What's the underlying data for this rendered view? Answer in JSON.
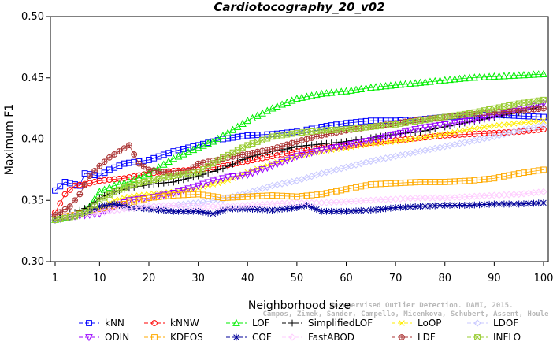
{
  "chart_data": {
    "type": "line",
    "title": "Cardiotocography_20_v02",
    "xlabel": "Neighborhood size",
    "ylabel": "Maximum F1",
    "xlim": [
      1,
      100
    ],
    "ylim": [
      0.3,
      0.5
    ],
    "x_ticks": [
      1,
      10,
      20,
      30,
      40,
      50,
      60,
      70,
      80,
      90,
      100
    ],
    "y_ticks": [
      0.3,
      0.35,
      0.4,
      0.45,
      0.5
    ],
    "y_tick_labels": [
      "0.30",
      "0.35",
      "0.40",
      "0.45",
      "0.50"
    ],
    "grid": false,
    "legend_position": "bottom",
    "watermark": [
      "Unsupervised Outlier Detection. DAMI, 2015.",
      "Campos, Zimek, Sander, Campello, Micenkova, Schubert, Assent, Houle"
    ],
    "series": [
      {
        "name": "kNN",
        "color": "#0000ff",
        "marker": "square",
        "points": [
          [
            1,
            0.358
          ],
          [
            3,
            0.365
          ],
          [
            6,
            0.362
          ],
          [
            7,
            0.372
          ],
          [
            10,
            0.37
          ],
          [
            12,
            0.375
          ],
          [
            15,
            0.38
          ],
          [
            20,
            0.383
          ],
          [
            25,
            0.39
          ],
          [
            30,
            0.395
          ],
          [
            35,
            0.4
          ],
          [
            40,
            0.403
          ],
          [
            45,
            0.404
          ],
          [
            50,
            0.406
          ],
          [
            55,
            0.41
          ],
          [
            60,
            0.413
          ],
          [
            65,
            0.415
          ],
          [
            70,
            0.415
          ],
          [
            75,
            0.416
          ],
          [
            80,
            0.418
          ],
          [
            85,
            0.419
          ],
          [
            90,
            0.42
          ],
          [
            95,
            0.419
          ],
          [
            100,
            0.418
          ]
        ]
      },
      {
        "name": "kNNW",
        "color": "#ff0000",
        "marker": "circle",
        "points": [
          [
            1,
            0.34
          ],
          [
            3,
            0.355
          ],
          [
            5,
            0.362
          ],
          [
            8,
            0.364
          ],
          [
            10,
            0.366
          ],
          [
            15,
            0.368
          ],
          [
            20,
            0.372
          ],
          [
            25,
            0.374
          ],
          [
            30,
            0.375
          ],
          [
            35,
            0.378
          ],
          [
            40,
            0.382
          ],
          [
            45,
            0.386
          ],
          [
            50,
            0.39
          ],
          [
            55,
            0.393
          ],
          [
            60,
            0.394
          ],
          [
            65,
            0.397
          ],
          [
            70,
            0.399
          ],
          [
            75,
            0.401
          ],
          [
            80,
            0.403
          ],
          [
            85,
            0.404
          ],
          [
            90,
            0.405
          ],
          [
            95,
            0.406
          ],
          [
            100,
            0.408
          ]
        ]
      },
      {
        "name": "LOF",
        "color": "#00ee00",
        "marker": "triangle-up",
        "points": [
          [
            1,
            0.334
          ],
          [
            5,
            0.338
          ],
          [
            8,
            0.345
          ],
          [
            10,
            0.357
          ],
          [
            13,
            0.362
          ],
          [
            16,
            0.365
          ],
          [
            20,
            0.372
          ],
          [
            25,
            0.384
          ],
          [
            30,
            0.393
          ],
          [
            33,
            0.398
          ],
          [
            36,
            0.405
          ],
          [
            40,
            0.415
          ],
          [
            45,
            0.425
          ],
          [
            50,
            0.433
          ],
          [
            55,
            0.437
          ],
          [
            60,
            0.439
          ],
          [
            65,
            0.442
          ],
          [
            70,
            0.444
          ],
          [
            75,
            0.446
          ],
          [
            80,
            0.448
          ],
          [
            85,
            0.45
          ],
          [
            90,
            0.451
          ],
          [
            95,
            0.452
          ],
          [
            100,
            0.453
          ]
        ]
      },
      {
        "name": "SimplifiedLOF",
        "color": "#000000",
        "marker": "plus",
        "points": [
          [
            1,
            0.337
          ],
          [
            5,
            0.34
          ],
          [
            8,
            0.345
          ],
          [
            10,
            0.352
          ],
          [
            13,
            0.357
          ],
          [
            16,
            0.36
          ],
          [
            20,
            0.363
          ],
          [
            25,
            0.365
          ],
          [
            30,
            0.37
          ],
          [
            35,
            0.376
          ],
          [
            40,
            0.385
          ],
          [
            45,
            0.39
          ],
          [
            48,
            0.392
          ],
          [
            50,
            0.394
          ],
          [
            55,
            0.396
          ],
          [
            60,
            0.398
          ],
          [
            65,
            0.401
          ],
          [
            70,
            0.404
          ],
          [
            75,
            0.406
          ],
          [
            80,
            0.41
          ],
          [
            85,
            0.414
          ],
          [
            90,
            0.418
          ],
          [
            95,
            0.422
          ],
          [
            100,
            0.427
          ]
        ]
      },
      {
        "name": "LoOP",
        "color": "#ffee00",
        "marker": "x",
        "points": [
          [
            1,
            0.336
          ],
          [
            5,
            0.337
          ],
          [
            10,
            0.343
          ],
          [
            13,
            0.35
          ],
          [
            16,
            0.353
          ],
          [
            20,
            0.355
          ],
          [
            25,
            0.357
          ],
          [
            30,
            0.36
          ],
          [
            35,
            0.365
          ],
          [
            40,
            0.373
          ],
          [
            45,
            0.38
          ],
          [
            50,
            0.386
          ],
          [
            55,
            0.39
          ],
          [
            60,
            0.393
          ],
          [
            65,
            0.396
          ],
          [
            70,
            0.398
          ],
          [
            75,
            0.401
          ],
          [
            80,
            0.404
          ],
          [
            85,
            0.408
          ],
          [
            90,
            0.411
          ],
          [
            95,
            0.413
          ],
          [
            100,
            0.415
          ]
        ]
      },
      {
        "name": "LDOF",
        "color": "#c8c8ff",
        "marker": "diamond",
        "points": [
          [
            1,
            0.336
          ],
          [
            5,
            0.337
          ],
          [
            10,
            0.34
          ],
          [
            15,
            0.343
          ],
          [
            20,
            0.345
          ],
          [
            25,
            0.346
          ],
          [
            30,
            0.348
          ],
          [
            35,
            0.351
          ],
          [
            40,
            0.356
          ],
          [
            45,
            0.362
          ],
          [
            50,
            0.366
          ],
          [
            55,
            0.372
          ],
          [
            60,
            0.377
          ],
          [
            65,
            0.382
          ],
          [
            70,
            0.386
          ],
          [
            75,
            0.39
          ],
          [
            80,
            0.394
          ],
          [
            85,
            0.398
          ],
          [
            90,
            0.402
          ],
          [
            95,
            0.407
          ],
          [
            100,
            0.411
          ]
        ]
      },
      {
        "name": "ODIN",
        "color": "#9900ff",
        "marker": "triangle-down",
        "points": [
          [
            1,
            0.336
          ],
          [
            5,
            0.337
          ],
          [
            10,
            0.339
          ],
          [
            13,
            0.345
          ],
          [
            16,
            0.35
          ],
          [
            20,
            0.352
          ],
          [
            25,
            0.356
          ],
          [
            30,
            0.362
          ],
          [
            33,
            0.366
          ],
          [
            36,
            0.369
          ],
          [
            40,
            0.371
          ],
          [
            45,
            0.378
          ],
          [
            50,
            0.386
          ],
          [
            55,
            0.391
          ],
          [
            60,
            0.395
          ],
          [
            65,
            0.399
          ],
          [
            70,
            0.404
          ],
          [
            75,
            0.409
          ],
          [
            80,
            0.412
          ],
          [
            85,
            0.415
          ],
          [
            90,
            0.419
          ],
          [
            95,
            0.424
          ],
          [
            100,
            0.429
          ]
        ]
      },
      {
        "name": "KDEOS",
        "color": "#ffaa00",
        "marker": "square",
        "points": [
          [
            1,
            0.336
          ],
          [
            5,
            0.338
          ],
          [
            10,
            0.343
          ],
          [
            15,
            0.347
          ],
          [
            20,
            0.352
          ],
          [
            25,
            0.354
          ],
          [
            30,
            0.355
          ],
          [
            35,
            0.352
          ],
          [
            40,
            0.353
          ],
          [
            45,
            0.354
          ],
          [
            50,
            0.353
          ],
          [
            55,
            0.355
          ],
          [
            60,
            0.359
          ],
          [
            65,
            0.363
          ],
          [
            70,
            0.364
          ],
          [
            75,
            0.365
          ],
          [
            80,
            0.365
          ],
          [
            85,
            0.366
          ],
          [
            90,
            0.368
          ],
          [
            95,
            0.372
          ],
          [
            100,
            0.375
          ]
        ]
      },
      {
        "name": "COF",
        "color": "#000099",
        "marker": "asterisk",
        "points": [
          [
            1,
            0.334
          ],
          [
            5,
            0.337
          ],
          [
            8,
            0.341
          ],
          [
            10,
            0.345
          ],
          [
            13,
            0.347
          ],
          [
            16,
            0.344
          ],
          [
            20,
            0.343
          ],
          [
            25,
            0.341
          ],
          [
            30,
            0.341
          ],
          [
            33,
            0.339
          ],
          [
            36,
            0.343
          ],
          [
            40,
            0.343
          ],
          [
            45,
            0.342
          ],
          [
            50,
            0.344
          ],
          [
            52,
            0.346
          ],
          [
            55,
            0.341
          ],
          [
            60,
            0.341
          ],
          [
            65,
            0.342
          ],
          [
            70,
            0.344
          ],
          [
            75,
            0.345
          ],
          [
            80,
            0.346
          ],
          [
            85,
            0.346
          ],
          [
            90,
            0.347
          ],
          [
            95,
            0.347
          ],
          [
            100,
            0.348
          ]
        ]
      },
      {
        "name": "FastABOD",
        "color": "#ffccff",
        "marker": "diamond",
        "points": [
          [
            1,
            0.336
          ],
          [
            5,
            0.338
          ],
          [
            10,
            0.34
          ],
          [
            15,
            0.343
          ],
          [
            20,
            0.345
          ],
          [
            25,
            0.346
          ],
          [
            30,
            0.345
          ],
          [
            35,
            0.345
          ],
          [
            40,
            0.346
          ],
          [
            45,
            0.347
          ],
          [
            50,
            0.348
          ],
          [
            55,
            0.348
          ],
          [
            60,
            0.349
          ],
          [
            65,
            0.35
          ],
          [
            70,
            0.351
          ],
          [
            75,
            0.352
          ],
          [
            80,
            0.352
          ],
          [
            85,
            0.353
          ],
          [
            90,
            0.354
          ],
          [
            95,
            0.355
          ],
          [
            100,
            0.357
          ]
        ]
      },
      {
        "name": "LDF",
        "color": "#aa3333",
        "marker": "circle-plus",
        "points": [
          [
            1,
            0.338
          ],
          [
            4,
            0.345
          ],
          [
            6,
            0.355
          ],
          [
            8,
            0.37
          ],
          [
            10,
            0.378
          ],
          [
            12,
            0.385
          ],
          [
            14,
            0.39
          ],
          [
            16,
            0.395
          ],
          [
            18,
            0.38
          ],
          [
            20,
            0.375
          ],
          [
            25,
            0.372
          ],
          [
            28,
            0.374
          ],
          [
            30,
            0.38
          ],
          [
            35,
            0.384
          ],
          [
            40,
            0.388
          ],
          [
            45,
            0.392
          ],
          [
            50,
            0.398
          ],
          [
            55,
            0.403
          ],
          [
            60,
            0.407
          ],
          [
            65,
            0.41
          ],
          [
            70,
            0.413
          ],
          [
            75,
            0.416
          ],
          [
            80,
            0.418
          ],
          [
            85,
            0.42
          ],
          [
            90,
            0.422
          ],
          [
            95,
            0.423
          ],
          [
            100,
            0.425
          ]
        ]
      },
      {
        "name": "INFLO",
        "color": "#99cc33",
        "marker": "box-x",
        "points": [
          [
            1,
            0.334
          ],
          [
            5,
            0.337
          ],
          [
            8,
            0.342
          ],
          [
            10,
            0.35
          ],
          [
            13,
            0.357
          ],
          [
            16,
            0.362
          ],
          [
            20,
            0.366
          ],
          [
            25,
            0.37
          ],
          [
            30,
            0.373
          ],
          [
            35,
            0.385
          ],
          [
            40,
            0.395
          ],
          [
            45,
            0.402
          ],
          [
            50,
            0.405
          ],
          [
            55,
            0.407
          ],
          [
            60,
            0.408
          ],
          [
            65,
            0.41
          ],
          [
            70,
            0.412
          ],
          [
            75,
            0.415
          ],
          [
            80,
            0.418
          ],
          [
            85,
            0.421
          ],
          [
            90,
            0.425
          ],
          [
            95,
            0.429
          ],
          [
            100,
            0.432
          ]
        ]
      }
    ]
  }
}
